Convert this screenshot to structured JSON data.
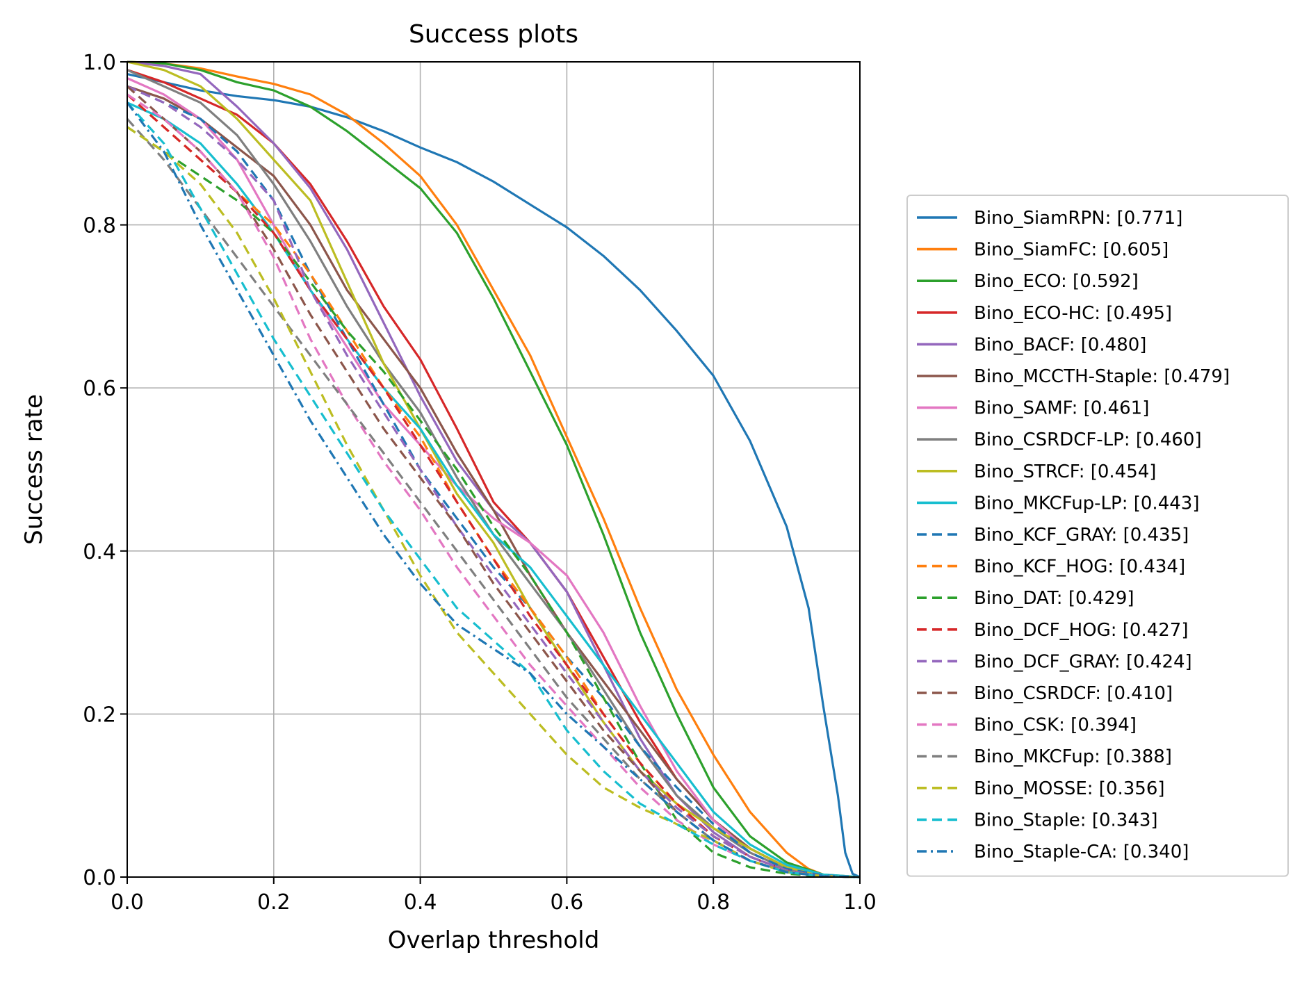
{
  "chart_data": {
    "type": "line",
    "title": "Success plots",
    "xlabel": "Overlap threshold",
    "ylabel": "Success rate",
    "xlim": [
      0.0,
      1.0
    ],
    "ylim": [
      0.0,
      1.0
    ],
    "x_ticks": [
      "0.0",
      "0.2",
      "0.4",
      "0.6",
      "0.8",
      "1.0"
    ],
    "y_ticks": [
      "0.0",
      "0.2",
      "0.4",
      "0.6",
      "0.8",
      "1.0"
    ],
    "grid": true,
    "legend_position": "right",
    "series": [
      {
        "name": "Bino_SiamRPN: [0.771]",
        "color": "#1f77b4",
        "style": "solid",
        "x": [
          0.0,
          0.05,
          0.1,
          0.15,
          0.2,
          0.25,
          0.3,
          0.35,
          0.4,
          0.45,
          0.5,
          0.55,
          0.6,
          0.65,
          0.7,
          0.75,
          0.8,
          0.85,
          0.9,
          0.93,
          0.95,
          0.97,
          0.98,
          0.99,
          1.0
        ],
        "y": [
          0.985,
          0.975,
          0.965,
          0.958,
          0.953,
          0.945,
          0.932,
          0.915,
          0.895,
          0.877,
          0.853,
          0.825,
          0.797,
          0.762,
          0.72,
          0.67,
          0.615,
          0.535,
          0.43,
          0.33,
          0.21,
          0.1,
          0.03,
          0.004,
          0.0
        ]
      },
      {
        "name": "Bino_SiamFC: [0.605]",
        "color": "#ff7f0e",
        "style": "solid",
        "x": [
          0.0,
          0.05,
          0.1,
          0.15,
          0.2,
          0.25,
          0.3,
          0.35,
          0.4,
          0.45,
          0.5,
          0.55,
          0.6,
          0.65,
          0.7,
          0.75,
          0.8,
          0.85,
          0.9,
          0.93,
          0.95,
          0.97,
          1.0
        ],
        "y": [
          1.0,
          0.998,
          0.992,
          0.982,
          0.973,
          0.96,
          0.935,
          0.9,
          0.86,
          0.8,
          0.72,
          0.64,
          0.54,
          0.44,
          0.33,
          0.23,
          0.15,
          0.08,
          0.03,
          0.01,
          0.003,
          0.001,
          0.0
        ]
      },
      {
        "name": "Bino_ECO: [0.592]",
        "color": "#2ca02c",
        "style": "solid",
        "x": [
          0.0,
          0.05,
          0.1,
          0.15,
          0.2,
          0.25,
          0.3,
          0.35,
          0.4,
          0.45,
          0.5,
          0.55,
          0.6,
          0.65,
          0.7,
          0.75,
          0.8,
          0.85,
          0.9,
          0.95,
          1.0
        ],
        "y": [
          1.0,
          0.998,
          0.99,
          0.975,
          0.965,
          0.945,
          0.915,
          0.88,
          0.845,
          0.79,
          0.71,
          0.62,
          0.53,
          0.42,
          0.3,
          0.2,
          0.11,
          0.05,
          0.018,
          0.003,
          0.0
        ]
      },
      {
        "name": "Bino_ECO-HC: [0.495]",
        "color": "#d62728",
        "style": "solid",
        "x": [
          0.0,
          0.05,
          0.1,
          0.15,
          0.2,
          0.25,
          0.3,
          0.35,
          0.4,
          0.45,
          0.5,
          0.55,
          0.6,
          0.65,
          0.7,
          0.75,
          0.8,
          0.85,
          0.9,
          0.95,
          1.0
        ],
        "y": [
          0.99,
          0.975,
          0.955,
          0.935,
          0.9,
          0.85,
          0.78,
          0.7,
          0.635,
          0.55,
          0.46,
          0.41,
          0.35,
          0.27,
          0.19,
          0.12,
          0.07,
          0.035,
          0.012,
          0.002,
          0.0
        ]
      },
      {
        "name": "Bino_BACF: [0.480]",
        "color": "#9467bd",
        "style": "solid",
        "x": [
          0.0,
          0.05,
          0.1,
          0.15,
          0.2,
          0.25,
          0.3,
          0.35,
          0.4,
          0.45,
          0.5,
          0.55,
          0.6,
          0.65,
          0.7,
          0.75,
          0.8,
          0.85,
          0.9,
          0.95,
          1.0
        ],
        "y": [
          1.0,
          0.995,
          0.985,
          0.945,
          0.9,
          0.845,
          0.77,
          0.68,
          0.59,
          0.51,
          0.45,
          0.41,
          0.35,
          0.26,
          0.17,
          0.1,
          0.055,
          0.025,
          0.008,
          0.001,
          0.0
        ]
      },
      {
        "name": "Bino_MCCTH-Staple: [0.479]",
        "color": "#8c564b",
        "style": "solid",
        "x": [
          0.0,
          0.05,
          0.1,
          0.15,
          0.2,
          0.25,
          0.3,
          0.35,
          0.4,
          0.45,
          0.5,
          0.55,
          0.6,
          0.65,
          0.7,
          0.75,
          0.8,
          0.85,
          0.9,
          0.95,
          1.0
        ],
        "y": [
          0.97,
          0.955,
          0.93,
          0.895,
          0.86,
          0.8,
          0.72,
          0.66,
          0.6,
          0.52,
          0.45,
          0.37,
          0.3,
          0.24,
          0.18,
          0.12,
          0.07,
          0.035,
          0.012,
          0.002,
          0.0
        ]
      },
      {
        "name": "Bino_SAMF: [0.461]",
        "color": "#e377c2",
        "style": "solid",
        "x": [
          0.0,
          0.05,
          0.1,
          0.15,
          0.2,
          0.25,
          0.3,
          0.35,
          0.4,
          0.45,
          0.5,
          0.55,
          0.6,
          0.65,
          0.7,
          0.75,
          0.8,
          0.85,
          0.9,
          0.95,
          1.0
        ],
        "y": [
          0.98,
          0.96,
          0.93,
          0.88,
          0.8,
          0.72,
          0.65,
          0.58,
          0.53,
          0.48,
          0.44,
          0.41,
          0.37,
          0.3,
          0.21,
          0.13,
          0.07,
          0.03,
          0.01,
          0.002,
          0.0
        ]
      },
      {
        "name": "Bino_CSRDCF-LP: [0.460]",
        "color": "#7f7f7f",
        "style": "solid",
        "x": [
          0.0,
          0.05,
          0.1,
          0.15,
          0.2,
          0.25,
          0.3,
          0.35,
          0.4,
          0.45,
          0.5,
          0.55,
          0.6,
          0.65,
          0.7,
          0.75,
          0.8,
          0.85,
          0.9,
          0.95,
          1.0
        ],
        "y": [
          0.99,
          0.97,
          0.95,
          0.91,
          0.85,
          0.78,
          0.7,
          0.63,
          0.57,
          0.49,
          0.42,
          0.36,
          0.3,
          0.23,
          0.16,
          0.1,
          0.06,
          0.03,
          0.01,
          0.002,
          0.0
        ]
      },
      {
        "name": "Bino_STRCF: [0.454]",
        "color": "#bcbd22",
        "style": "solid",
        "x": [
          0.0,
          0.05,
          0.1,
          0.15,
          0.2,
          0.25,
          0.3,
          0.35,
          0.4,
          0.45,
          0.5,
          0.55,
          0.6,
          0.65,
          0.7,
          0.75,
          0.8,
          0.85,
          0.9,
          0.95,
          1.0
        ],
        "y": [
          1.0,
          0.99,
          0.97,
          0.93,
          0.88,
          0.83,
          0.73,
          0.63,
          0.55,
          0.47,
          0.41,
          0.33,
          0.26,
          0.19,
          0.13,
          0.09,
          0.06,
          0.035,
          0.012,
          0.002,
          0.0
        ]
      },
      {
        "name": "Bino_MKCFup-LP: [0.443]",
        "color": "#17becf",
        "style": "solid",
        "x": [
          0.0,
          0.05,
          0.1,
          0.15,
          0.2,
          0.25,
          0.3,
          0.35,
          0.4,
          0.45,
          0.5,
          0.55,
          0.6,
          0.65,
          0.7,
          0.75,
          0.8,
          0.85,
          0.9,
          0.95,
          1.0
        ],
        "y": [
          0.95,
          0.93,
          0.9,
          0.85,
          0.79,
          0.72,
          0.66,
          0.6,
          0.55,
          0.48,
          0.42,
          0.38,
          0.32,
          0.26,
          0.2,
          0.14,
          0.08,
          0.04,
          0.015,
          0.003,
          0.0
        ]
      },
      {
        "name": "Bino_KCF_GRAY: [0.435]",
        "color": "#1f77b4",
        "style": "dashed",
        "x": [
          0.0,
          0.05,
          0.1,
          0.15,
          0.2,
          0.25,
          0.3,
          0.35,
          0.4,
          0.45,
          0.5,
          0.55,
          0.6,
          0.65,
          0.7,
          0.75,
          0.8,
          0.85,
          0.9,
          0.95,
          1.0
        ],
        "y": [
          0.97,
          0.95,
          0.93,
          0.89,
          0.83,
          0.74,
          0.66,
          0.58,
          0.5,
          0.44,
          0.38,
          0.33,
          0.27,
          0.22,
          0.16,
          0.11,
          0.065,
          0.03,
          0.01,
          0.002,
          0.0
        ]
      },
      {
        "name": "Bino_KCF_HOG: [0.434]",
        "color": "#ff7f0e",
        "style": "dashed",
        "x": [
          0.0,
          0.05,
          0.1,
          0.15,
          0.2,
          0.25,
          0.3,
          0.35,
          0.4,
          0.45,
          0.5,
          0.55,
          0.6,
          0.65,
          0.7,
          0.75,
          0.8,
          0.85,
          0.9,
          0.95,
          1.0
        ],
        "y": [
          0.96,
          0.92,
          0.88,
          0.84,
          0.8,
          0.74,
          0.67,
          0.6,
          0.54,
          0.46,
          0.39,
          0.33,
          0.27,
          0.2,
          0.14,
          0.09,
          0.05,
          0.025,
          0.008,
          0.001,
          0.0
        ]
      },
      {
        "name": "Bino_DAT: [0.429]",
        "color": "#2ca02c",
        "style": "dashed",
        "x": [
          0.0,
          0.05,
          0.1,
          0.15,
          0.2,
          0.25,
          0.3,
          0.35,
          0.4,
          0.45,
          0.5,
          0.55,
          0.6,
          0.65,
          0.7,
          0.75,
          0.8,
          0.85,
          0.9,
          0.95,
          1.0
        ],
        "y": [
          0.92,
          0.89,
          0.86,
          0.83,
          0.79,
          0.73,
          0.67,
          0.62,
          0.56,
          0.5,
          0.43,
          0.37,
          0.3,
          0.22,
          0.14,
          0.07,
          0.03,
          0.012,
          0.004,
          0.001,
          0.0
        ]
      },
      {
        "name": "Bino_DCF_HOG: [0.427]",
        "color": "#d62728",
        "style": "dashed",
        "x": [
          0.0,
          0.05,
          0.1,
          0.15,
          0.2,
          0.25,
          0.3,
          0.35,
          0.4,
          0.45,
          0.5,
          0.55,
          0.6,
          0.65,
          0.7,
          0.75,
          0.8,
          0.85,
          0.9,
          0.95,
          1.0
        ],
        "y": [
          0.96,
          0.92,
          0.88,
          0.84,
          0.79,
          0.72,
          0.66,
          0.6,
          0.53,
          0.46,
          0.39,
          0.32,
          0.26,
          0.2,
          0.14,
          0.09,
          0.05,
          0.025,
          0.008,
          0.001,
          0.0
        ]
      },
      {
        "name": "Bino_DCF_GRAY: [0.424]",
        "color": "#9467bd",
        "style": "dashed",
        "x": [
          0.0,
          0.05,
          0.1,
          0.15,
          0.2,
          0.25,
          0.3,
          0.35,
          0.4,
          0.45,
          0.5,
          0.55,
          0.6,
          0.65,
          0.7,
          0.75,
          0.8,
          0.85,
          0.9,
          0.95,
          1.0
        ],
        "y": [
          0.97,
          0.95,
          0.92,
          0.88,
          0.83,
          0.72,
          0.64,
          0.57,
          0.5,
          0.43,
          0.37,
          0.31,
          0.25,
          0.19,
          0.13,
          0.085,
          0.05,
          0.025,
          0.008,
          0.001,
          0.0
        ]
      },
      {
        "name": "Bino_CSRDCF: [0.410]",
        "color": "#8c564b",
        "style": "dashed",
        "x": [
          0.0,
          0.05,
          0.1,
          0.15,
          0.2,
          0.25,
          0.3,
          0.35,
          0.4,
          0.45,
          0.5,
          0.55,
          0.6,
          0.65,
          0.7,
          0.75,
          0.8,
          0.85,
          0.9,
          0.95,
          1.0
        ],
        "y": [
          0.97,
          0.93,
          0.89,
          0.84,
          0.77,
          0.69,
          0.62,
          0.55,
          0.49,
          0.43,
          0.36,
          0.3,
          0.24,
          0.18,
          0.13,
          0.08,
          0.045,
          0.02,
          0.007,
          0.001,
          0.0
        ]
      },
      {
        "name": "Bino_CSK: [0.394]",
        "color": "#e377c2",
        "style": "dashed",
        "x": [
          0.0,
          0.05,
          0.1,
          0.15,
          0.2,
          0.25,
          0.3,
          0.35,
          0.4,
          0.45,
          0.5,
          0.55,
          0.6,
          0.65,
          0.7,
          0.75,
          0.8,
          0.85,
          0.9,
          0.95,
          1.0
        ],
        "y": [
          0.96,
          0.93,
          0.89,
          0.84,
          0.76,
          0.66,
          0.58,
          0.51,
          0.45,
          0.38,
          0.32,
          0.26,
          0.21,
          0.16,
          0.11,
          0.07,
          0.04,
          0.02,
          0.007,
          0.001,
          0.0
        ]
      },
      {
        "name": "Bino_MKCFup: [0.388]",
        "color": "#7f7f7f",
        "style": "dashed",
        "x": [
          0.0,
          0.05,
          0.1,
          0.15,
          0.2,
          0.25,
          0.3,
          0.35,
          0.4,
          0.45,
          0.5,
          0.55,
          0.6,
          0.65,
          0.7,
          0.75,
          0.8,
          0.85,
          0.9,
          0.95,
          1.0
        ],
        "y": [
          0.93,
          0.88,
          0.82,
          0.76,
          0.7,
          0.64,
          0.58,
          0.52,
          0.46,
          0.4,
          0.34,
          0.28,
          0.22,
          0.17,
          0.12,
          0.08,
          0.045,
          0.02,
          0.007,
          0.001,
          0.0
        ]
      },
      {
        "name": "Bino_MOSSE: [0.356]",
        "color": "#bcbd22",
        "style": "dashed",
        "x": [
          0.0,
          0.05,
          0.1,
          0.15,
          0.2,
          0.25,
          0.3,
          0.35,
          0.4,
          0.45,
          0.5,
          0.55,
          0.6,
          0.65,
          0.7,
          0.75,
          0.8,
          0.85,
          0.9,
          0.95,
          1.0
        ],
        "y": [
          0.92,
          0.89,
          0.85,
          0.79,
          0.71,
          0.62,
          0.53,
          0.45,
          0.37,
          0.3,
          0.25,
          0.2,
          0.15,
          0.11,
          0.085,
          0.065,
          0.045,
          0.02,
          0.006,
          0.001,
          0.0
        ]
      },
      {
        "name": "Bino_Staple: [0.343]",
        "color": "#17becf",
        "style": "dashed",
        "x": [
          0.0,
          0.05,
          0.1,
          0.15,
          0.2,
          0.25,
          0.3,
          0.35,
          0.4,
          0.45,
          0.5,
          0.55,
          0.6,
          0.65,
          0.7,
          0.75,
          0.8,
          0.85,
          0.9,
          0.95,
          1.0
        ],
        "y": [
          0.95,
          0.9,
          0.82,
          0.74,
          0.66,
          0.59,
          0.52,
          0.45,
          0.39,
          0.33,
          0.29,
          0.25,
          0.18,
          0.13,
          0.09,
          0.065,
          0.04,
          0.02,
          0.006,
          0.001,
          0.0
        ]
      },
      {
        "name": "Bino_Staple-CA: [0.340]",
        "color": "#1f77b4",
        "style": "dashdot",
        "x": [
          0.0,
          0.05,
          0.1,
          0.15,
          0.2,
          0.25,
          0.3,
          0.35,
          0.4,
          0.45,
          0.5,
          0.55,
          0.6,
          0.65,
          0.7,
          0.75,
          0.8,
          0.85,
          0.9,
          0.95,
          1.0
        ],
        "y": [
          0.95,
          0.89,
          0.8,
          0.72,
          0.64,
          0.56,
          0.49,
          0.42,
          0.36,
          0.31,
          0.28,
          0.25,
          0.2,
          0.16,
          0.12,
          0.08,
          0.045,
          0.02,
          0.006,
          0.001,
          0.0
        ]
      }
    ]
  }
}
